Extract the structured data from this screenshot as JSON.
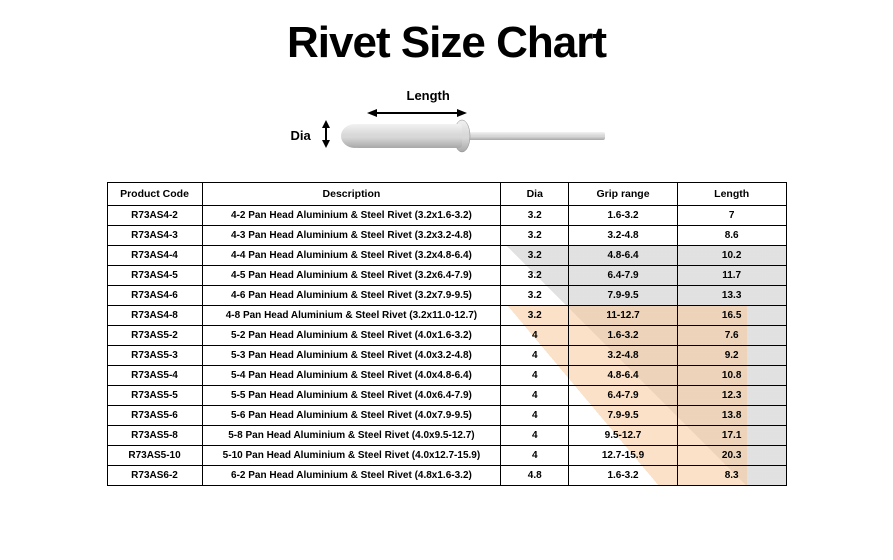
{
  "title": "Rivet Size Chart",
  "diagram": {
    "length_label": "Length",
    "dia_label": "Dia"
  },
  "table": {
    "columns": [
      "Product Code",
      "Description",
      "Dia",
      "Grip range",
      "Length"
    ],
    "rows": [
      [
        "R73AS4-2",
        "4-2 Pan Head Aluminium & Steel Rivet (3.2x1.6-3.2)",
        "3.2",
        "1.6-3.2",
        "7"
      ],
      [
        "R73AS4-3",
        "4-3 Pan Head Aluminium & Steel Rivet (3.2x3.2-4.8)",
        "3.2",
        "3.2-4.8",
        "8.6"
      ],
      [
        "R73AS4-4",
        "4-4 Pan Head Aluminium & Steel Rivet (3.2x4.8-6.4)",
        "3.2",
        "4.8-6.4",
        "10.2"
      ],
      [
        "R73AS4-5",
        "4-5 Pan Head Aluminium & Steel Rivet (3.2x6.4-7.9)",
        "3.2",
        "6.4-7.9",
        "11.7"
      ],
      [
        "R73AS4-6",
        "4-6 Pan Head Aluminium & Steel Rivet (3.2x7.9-9.5)",
        "3.2",
        "7.9-9.5",
        "13.3"
      ],
      [
        "R73AS4-8",
        "4-8 Pan Head Aluminium & Steel Rivet (3.2x11.0-12.7)",
        "3.2",
        "11-12.7",
        "16.5"
      ],
      [
        "R73AS5-2",
        "5-2 Pan Head Aluminium & Steel Rivet (4.0x1.6-3.2)",
        "4",
        "1.6-3.2",
        "7.6"
      ],
      [
        "R73AS5-3",
        "5-3 Pan Head Aluminium & Steel Rivet (4.0x3.2-4.8)",
        "4",
        "3.2-4.8",
        "9.2"
      ],
      [
        "R73AS5-4",
        "5-4 Pan Head Aluminium & Steel Rivet (4.0x4.8-6.4)",
        "4",
        "4.8-6.4",
        "10.8"
      ],
      [
        "R73AS5-5",
        "5-5 Pan Head Aluminium & Steel Rivet (4.0x6.4-7.9)",
        "4",
        "6.4-7.9",
        "12.3"
      ],
      [
        "R73AS5-6",
        "5-6 Pan Head Aluminium & Steel Rivet (4.0x7.9-9.5)",
        "4",
        "7.9-9.5",
        "13.8"
      ],
      [
        "R73AS5-8",
        "5-8 Pan Head Aluminium & Steel Rivet (4.0x9.5-12.7)",
        "4",
        "9.5-12.7",
        "17.1"
      ],
      [
        "R73AS5-10",
        "5-10 Pan Head Aluminium & Steel Rivet (4.0x12.7-15.9)",
        "4",
        "12.7-15.9",
        "20.3"
      ],
      [
        "R73AS6-2",
        "6-2 Pan Head Aluminium & Steel Rivet (4.8x1.6-3.2)",
        "4.8",
        "1.6-3.2",
        "8.3"
      ]
    ]
  },
  "colors": {
    "border": "#000000",
    "bg": "#ffffff",
    "accent_grey": "#c9c9c9",
    "accent_orange": "#f7c89a",
    "rivet_body": "#d8d8d8",
    "rivet_shadow": "#a8a8a8",
    "rivet_highlight": "#f2f2f2"
  }
}
